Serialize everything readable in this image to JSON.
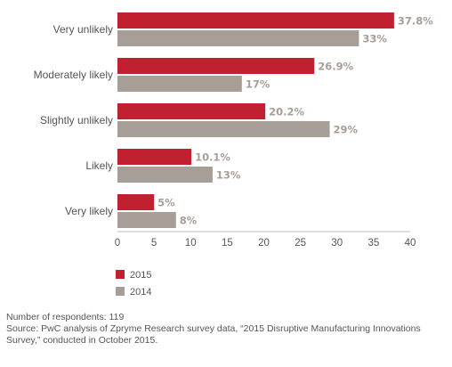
{
  "chart_data": {
    "type": "bar",
    "orientation": "horizontal",
    "categories": [
      "Very unlikely",
      "Moderately likely",
      "Slightly unlikely",
      "Likely",
      "Very likely"
    ],
    "series": [
      {
        "name": "2015",
        "values": [
          37.8,
          26.9,
          20.2,
          10.1,
          5
        ],
        "labels": [
          "37.8%",
          "26.9%",
          "20.2%",
          "10.1%",
          "5%"
        ],
        "color": "#c0202f"
      },
      {
        "name": "2014",
        "values": [
          33,
          17,
          29,
          13,
          8
        ],
        "labels": [
          "33%",
          "17%",
          "29%",
          "13%",
          "8%"
        ],
        "color": "#a89e98"
      }
    ],
    "xlim": [
      0,
      40
    ],
    "xticks": [
      0,
      5,
      10,
      15,
      20,
      25,
      30,
      35,
      40
    ],
    "grid": false,
    "legend_placement": "bottom-left",
    "label_color": "#a89e98"
  },
  "legend": {
    "item_2015": "2015",
    "item_2014": "2014"
  },
  "notes": {
    "respondents": "Number of respondents: 119",
    "source": "Source: PwC analysis of Zpryme Research survey data, “2015 Disruptive Manufacturing Innovations Survey,” conducted in October 2015."
  }
}
